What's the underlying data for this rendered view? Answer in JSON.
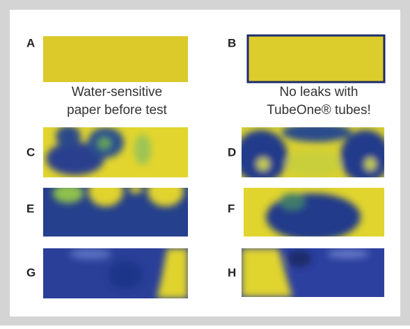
{
  "panels": [
    {
      "label": "A",
      "caption": [
        "Water-sensitive",
        "paper before test"
      ]
    },
    {
      "label": "B",
      "caption": [
        "No leaks with",
        "TubeOne® tubes!"
      ]
    },
    {
      "label": "C"
    },
    {
      "label": "D"
    },
    {
      "label": "E"
    },
    {
      "label": "F"
    },
    {
      "label": "G"
    },
    {
      "label": "H"
    }
  ]
}
